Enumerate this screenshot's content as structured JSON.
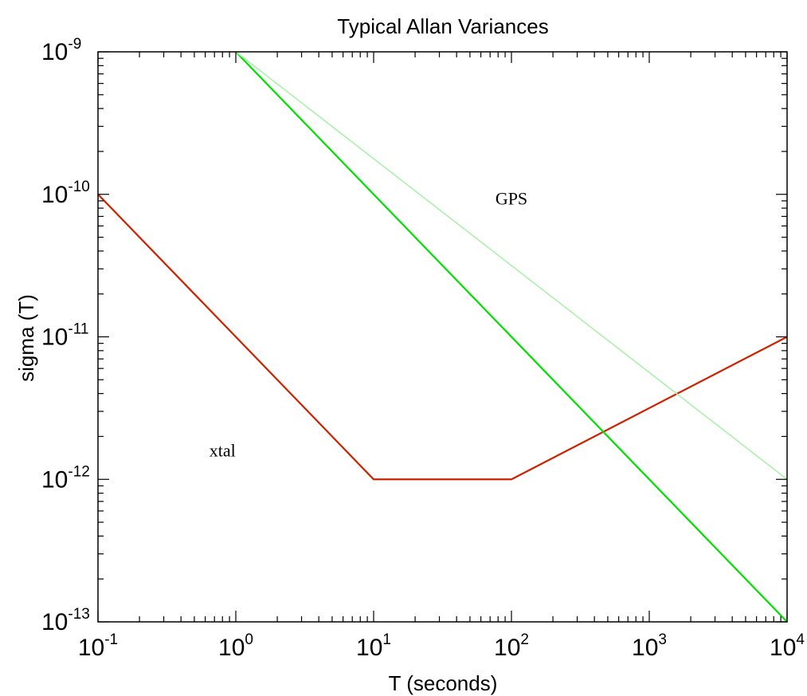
{
  "chart_data": {
    "type": "line",
    "title": "Typical Allan Variances",
    "xlabel": "T (seconds)",
    "ylabel": "sigma (T)",
    "x_scale": "log",
    "y_scale": "log",
    "xlim": [
      0.1,
      10000
    ],
    "ylim": [
      1e-13,
      1e-09
    ],
    "grid": false,
    "x_ticks": [
      {
        "value": 0.1,
        "base": "10",
        "exp": "-1"
      },
      {
        "value": 1,
        "base": "10",
        "exp": "0"
      },
      {
        "value": 10,
        "base": "10",
        "exp": "1"
      },
      {
        "value": 100,
        "base": "10",
        "exp": "2"
      },
      {
        "value": 1000,
        "base": "10",
        "exp": "3"
      },
      {
        "value": 10000,
        "base": "10",
        "exp": "4"
      }
    ],
    "y_ticks": [
      {
        "value": 1e-13,
        "base": "10",
        "exp": "-13"
      },
      {
        "value": 1e-12,
        "base": "10",
        "exp": "-12"
      },
      {
        "value": 1e-11,
        "base": "10",
        "exp": "-11"
      },
      {
        "value": 1e-10,
        "base": "10",
        "exp": "-10"
      },
      {
        "value": 1e-09,
        "base": "10",
        "exp": "-9"
      }
    ],
    "series": [
      {
        "color": "#cc2200",
        "x": [
          0.1,
          10,
          100,
          10000
        ],
        "y": [
          1e-10,
          1e-12,
          1e-12,
          1e-11
        ]
      },
      {
        "color": "#00e000",
        "x": [
          1,
          10000
        ],
        "y": [
          1e-09,
          1e-13
        ]
      },
      {
        "color": "#a8f0a8",
        "x": [
          1,
          10000
        ],
        "y": [
          1e-09,
          1e-12
        ]
      }
    ],
    "annotations": [
      {
        "text": "GPS",
        "x": 100,
        "y": 8.5e-11
      },
      {
        "text": "xtal",
        "x": 0.8,
        "y": 1.45e-12
      }
    ]
  }
}
